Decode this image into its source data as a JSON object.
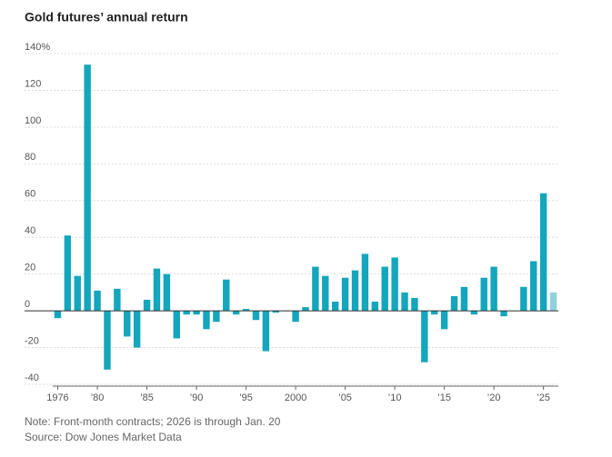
{
  "chart_data": {
    "type": "bar",
    "title": "Gold futures’ annual return",
    "note": "Note: Front-month contracts; 2026 is through Jan. 20",
    "source": "Source: Dow Jones Market Data",
    "categories": [
      "1976",
      null,
      null,
      null,
      "’80",
      null,
      null,
      null,
      null,
      "’85",
      null,
      null,
      null,
      null,
      "’90",
      null,
      null,
      null,
      null,
      "’95",
      null,
      null,
      null,
      null,
      "2000",
      null,
      null,
      null,
      null,
      "’05",
      null,
      null,
      null,
      null,
      "’10",
      null,
      null,
      null,
      null,
      "’15",
      null,
      null,
      null,
      null,
      "’20",
      null,
      null,
      null,
      null,
      "’25",
      null
    ],
    "values": [
      -4,
      41,
      19,
      134,
      11,
      -32,
      12,
      -14,
      -20,
      6,
      23,
      20,
      -15,
      -2,
      -2,
      -10,
      -6,
      17,
      -2,
      1,
      -5,
      -22,
      -1,
      0,
      -6,
      2,
      24,
      19,
      5,
      18,
      22,
      31,
      5,
      24,
      29,
      10,
      7,
      -28,
      -2,
      -10,
      8,
      13,
      -2,
      18,
      24,
      -3,
      0,
      13,
      27,
      64,
      10
    ],
    "color": "#13a6bd",
    "partial_color": "#8fd2dc",
    "ylim": [
      -41,
      140
    ],
    "yticks": [
      -40,
      -20,
      0,
      20,
      40,
      60,
      80,
      100,
      120,
      {
        "value": 140,
        "label": "140%"
      }
    ],
    "grid": true
  }
}
